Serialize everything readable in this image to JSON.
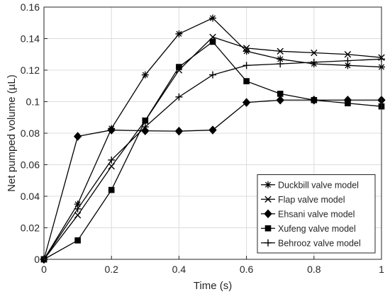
{
  "chart_data": {
    "type": "line",
    "title": "",
    "xlabel": "Time (s)",
    "ylabel": "Net pumped volume (µL)",
    "xlim": [
      0,
      1
    ],
    "ylim": [
      0,
      0.16
    ],
    "x_ticks": [
      0,
      0.2,
      0.4,
      0.6,
      0.8,
      1
    ],
    "x_tick_labels": [
      "0",
      "0.2",
      "0.4",
      "0.6",
      "0.8",
      "1"
    ],
    "y_ticks": [
      0,
      0.02,
      0.04,
      0.06,
      0.08,
      0.1,
      0.12,
      0.14,
      0.16
    ],
    "y_tick_labels": [
      "0",
      "0.02",
      "0.04",
      "0.06",
      "0.08",
      "0.1",
      "0.12",
      "0.14",
      "0.16"
    ],
    "grid": true,
    "legend_position": "bottom-right",
    "line_color": "#000000",
    "x": [
      0,
      0.1,
      0.2,
      0.3,
      0.4,
      0.5,
      0.6,
      0.7,
      0.8,
      0.9,
      1.0
    ],
    "series": [
      {
        "name": "Duckbill valve model",
        "marker": "asterisk",
        "values": [
          0,
          0.035,
          0.083,
          0.117,
          0.143,
          0.153,
          0.132,
          0.127,
          0.124,
          0.123,
          0.122
        ]
      },
      {
        "name": "Flap valve model",
        "marker": "x",
        "values": [
          0,
          0.028,
          0.059,
          0.088,
          0.12,
          0.141,
          0.134,
          0.132,
          0.131,
          0.13,
          0.128
        ]
      },
      {
        "name": "Ehsani valve model",
        "marker": "diamond",
        "values": [
          0,
          0.078,
          0.082,
          0.0815,
          0.0813,
          0.082,
          0.0995,
          0.101,
          0.101,
          0.101,
          0.101
        ]
      },
      {
        "name": "Xufeng valve model",
        "marker": "square",
        "values": [
          0,
          0.012,
          0.044,
          0.088,
          0.122,
          0.138,
          0.113,
          0.105,
          0.101,
          0.099,
          0.097
        ]
      },
      {
        "name": "Behrooz valve model",
        "marker": "plus",
        "values": [
          0,
          0.032,
          0.063,
          0.084,
          0.103,
          0.117,
          0.123,
          0.124,
          0.125,
          0.126,
          0.127
        ]
      }
    ]
  }
}
